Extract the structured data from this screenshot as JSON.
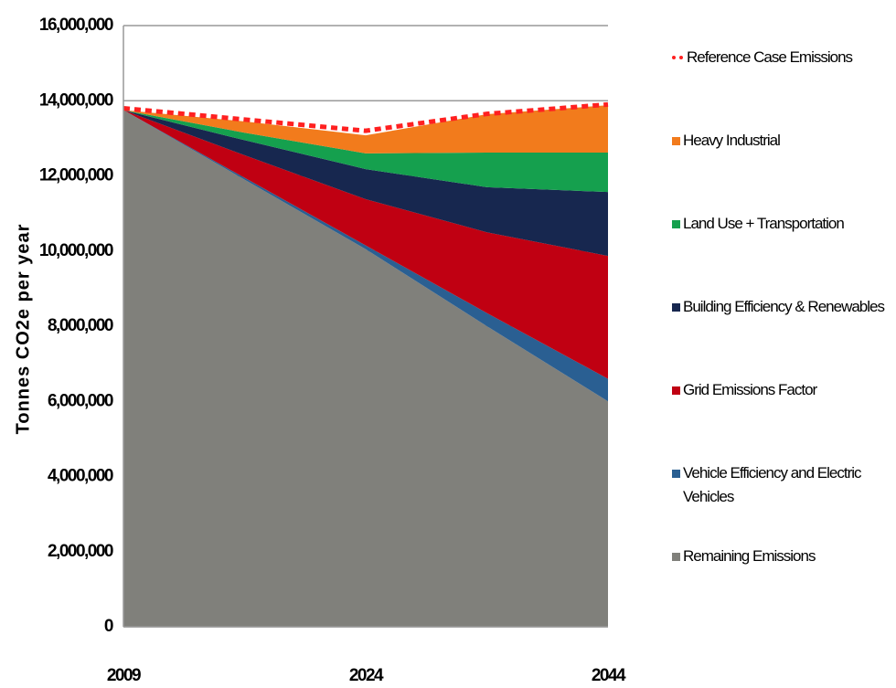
{
  "chart_data": {
    "type": "stacked-area",
    "y_label": "Tonnes CO2e per year",
    "categories": [
      "2009",
      null,
      "2024",
      null,
      "2044"
    ],
    "series": [
      {
        "name": "Remaining Emissions",
        "color": "#80807b",
        "values": [
          13750000,
          11900000,
          10050000,
          8000000,
          6000000
        ]
      },
      {
        "name": "Vehicle Efficiency and Electric Vehicles",
        "color": "#2a5f92",
        "values": [
          0,
          50000,
          100000,
          350000,
          600000
        ]
      },
      {
        "name": "Grid Emissions Factor",
        "color": "#c00012",
        "values": [
          0,
          600000,
          1230000,
          2150000,
          3270000
        ]
      },
      {
        "name": "Building Efficiency & Renewables",
        "color": "#17274f",
        "values": [
          0,
          400000,
          800000,
          1200000,
          1700000
        ]
      },
      {
        "name": "Land Use + Transportation",
        "color": "#15a04e",
        "values": [
          0,
          200000,
          420000,
          920000,
          1050000
        ]
      },
      {
        "name": "Heavy Industrial",
        "color": "#f27b1c",
        "values": [
          0,
          300000,
          480000,
          1020000,
          1260000
        ]
      }
    ],
    "reference": {
      "name": "Reference Case Emissions",
      "color": "#ff2020",
      "values": [
        13800000,
        13500000,
        13200000,
        13650000,
        13900000
      ]
    },
    "ylim": [
      0,
      16000000
    ],
    "yticks": [
      0,
      {
        "value": 2000000,
        "label": "2,000,000"
      },
      {
        "value": 4000000,
        "label": "4,000,000"
      },
      {
        "value": 6000000,
        "label": "6,000,000"
      },
      {
        "value": 8000000,
        "label": "8,000,000"
      },
      {
        "value": 10000000,
        "label": "10,000,000"
      },
      {
        "value": 12000000,
        "label": "12,000,000"
      },
      {
        "value": 14000000,
        "label": "14,000,000"
      },
      {
        "value": 16000000,
        "label": "16,000,000"
      }
    ],
    "grid": true
  }
}
